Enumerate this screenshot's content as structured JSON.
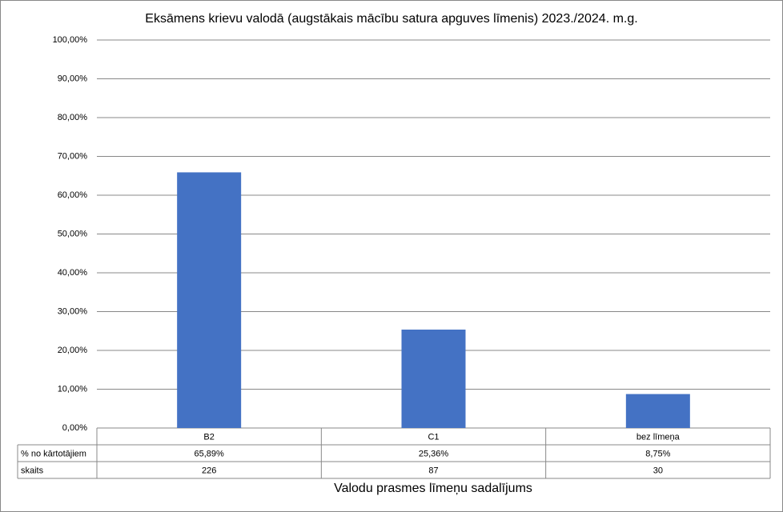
{
  "chart_data": {
    "type": "bar",
    "title": "Eksāmens krievu valodā (augstākais mācību satura apguves līmenis) 2023./2024. m.g.",
    "x_label": "Valodu prasmes līmeņu sadalījums",
    "categories": [
      "B2",
      "C1",
      "bez līmeņa"
    ],
    "series": [
      {
        "name": "% no kārtotājiem",
        "color": "#4472c4",
        "values": [
          65.89,
          25.36,
          8.75
        ],
        "value_labels": [
          "65,89%",
          "25,36%",
          "8,75%"
        ]
      }
    ],
    "table_rows": [
      {
        "name": "skaits",
        "values": [
          226,
          87,
          30
        ]
      }
    ],
    "ylim": [
      0,
      100
    ],
    "yticks": [
      {
        "value": 0,
        "label": "0,00%"
      },
      {
        "value": 10,
        "label": "10,00%"
      },
      {
        "value": 20,
        "label": "20,00%"
      },
      {
        "value": 30,
        "label": "30,00%"
      },
      {
        "value": 40,
        "label": "40,00%"
      },
      {
        "value": 50,
        "label": "50,00%"
      },
      {
        "value": 60,
        "label": "60,00%"
      },
      {
        "value": 70,
        "label": "70,00%"
      },
      {
        "value": 80,
        "label": "80,00%"
      },
      {
        "value": 90,
        "label": "90,00%"
      },
      {
        "value": 100,
        "label": "100,00%"
      }
    ],
    "grid": true
  }
}
